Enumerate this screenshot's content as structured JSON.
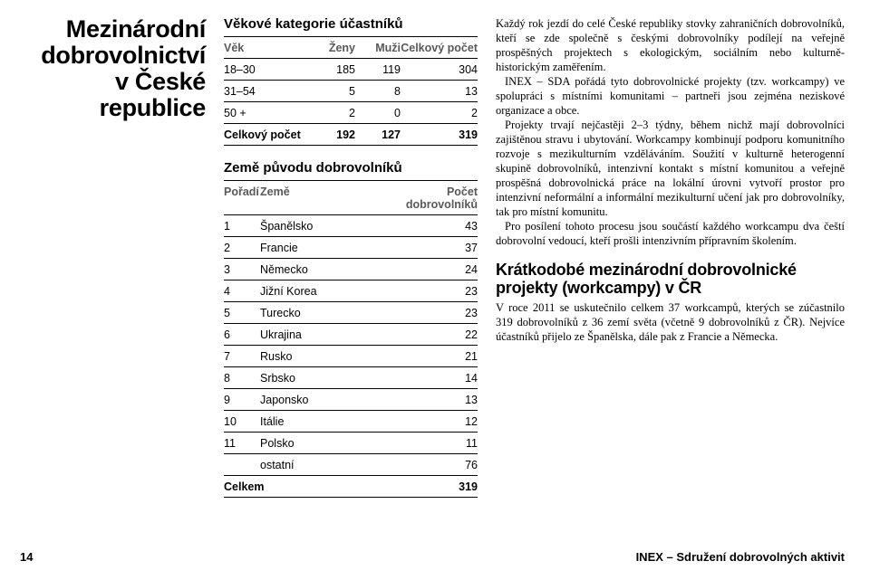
{
  "title_lines": [
    "Mezinárodní",
    "dobrovolnictví",
    "v České republice"
  ],
  "age_table": {
    "title": "Věkové kategorie účastníků",
    "headers": [
      "Věk",
      "Ženy",
      "Muži",
      "Celkový počet"
    ],
    "rows": [
      {
        "cells": [
          "18–30",
          "185",
          "119",
          "304"
        ],
        "bold": false
      },
      {
        "cells": [
          "31–54",
          "5",
          "8",
          "13"
        ],
        "bold": false
      },
      {
        "cells": [
          "50 +",
          "2",
          "0",
          "2"
        ],
        "bold": false
      },
      {
        "cells": [
          "Celkový počet",
          "192",
          "127",
          "319"
        ],
        "bold": true
      }
    ]
  },
  "countries_table": {
    "title": "Země původu dobrovolníků",
    "headers": [
      "Pořadí",
      "Země",
      "Počet dobrovolníků"
    ],
    "rows": [
      {
        "cells": [
          "1",
          "Španělsko",
          "43"
        ],
        "bold": false
      },
      {
        "cells": [
          "2",
          "Francie",
          "37"
        ],
        "bold": false
      },
      {
        "cells": [
          "3",
          "Německo",
          "24"
        ],
        "bold": false
      },
      {
        "cells": [
          "4",
          "Jižní Korea",
          "23"
        ],
        "bold": false
      },
      {
        "cells": [
          "5",
          "Turecko",
          "23"
        ],
        "bold": false
      },
      {
        "cells": [
          "6",
          "Ukrajina",
          "22"
        ],
        "bold": false
      },
      {
        "cells": [
          "7",
          "Rusko",
          "21"
        ],
        "bold": false
      },
      {
        "cells": [
          "8",
          "Srbsko",
          "14"
        ],
        "bold": false
      },
      {
        "cells": [
          "9",
          "Japonsko",
          "13"
        ],
        "bold": false
      },
      {
        "cells": [
          "10",
          "Itálie",
          "12"
        ],
        "bold": false
      },
      {
        "cells": [
          "11",
          "Polsko",
          "11"
        ],
        "bold": false
      },
      {
        "cells": [
          "",
          "ostatní",
          "76"
        ],
        "bold": false
      },
      {
        "cells": [
          "Celkem",
          "",
          "319"
        ],
        "bold": true
      }
    ]
  },
  "paragraphs": [
    "Každý rok jezdí do celé České republiky stovky zahraničních dobrovolníků, kteří se zde společně s českými dobrovolníky podílejí na veřejně prospěšných projektech s ekologickým, sociálním nebo kulturně-historickým zaměřením.",
    "INEX – SDA pořádá tyto dobrovolnické projekty (tzv. workcampy) ve spolupráci s místními komunitami – partneři jsou zejména neziskové organizace a obce.",
    "Projekty trvají nejčastěji 2–3 týdny, během nichž mají dobrovolníci zajištěnou stravu i ubytování. Workcampy kombinují podporu komunitního rozvoje s mezikulturním vzděláváním. Soužití v kulturně heterogenní skupině dobrovolníků, intenzivní kontakt s místní komunitou a veřejně prospěšná dobrovolnická práce na lokální úrovni vytvoří prostor pro intenzivní neformální a informální mezikulturní učení jak pro dobrovolníky, tak pro místní komunitu.",
    "Pro posílení tohoto procesu jsou součástí každého workcampu dva čeští dobrovolní vedoucí, kteří prošli intenzivním přípravním školením."
  ],
  "subheading": "Krátkodobé mezinárodní dobrovolnické projekty (workcampy) v ČR",
  "paragraphs2": [
    "V roce 2011 se uskutečnilo celkem 37 workcampů, kterých se zúčastnilo 319 dobrovolníků z 36 zemí světa (včetně 9 dobrovolníků z ČR). Nejvíce účastníků přijelo ze Španělska, dále pak z Francie a Německa."
  ],
  "footer": {
    "page_no": "14",
    "org": "INEX – Sdružení dobrovolných aktivit"
  },
  "colors": {
    "text": "#000000",
    "header_grey": "#595959",
    "rule": "#000000",
    "bg": "#ffffff"
  }
}
